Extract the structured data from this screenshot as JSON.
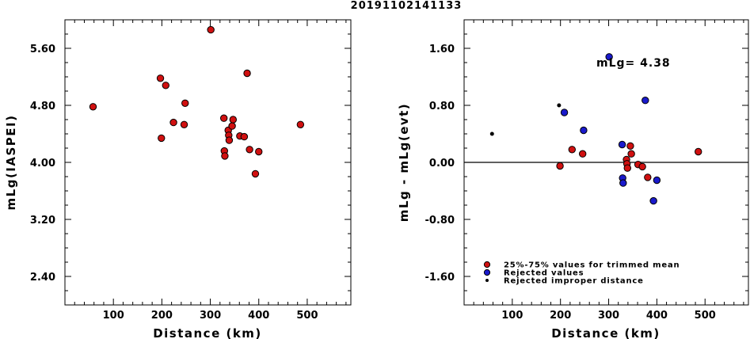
{
  "title": "20191102141133",
  "chart_data": [
    {
      "type": "scatter",
      "xlabel": "Distance (km)",
      "ylabel": "mLg(IASPEI)",
      "xlim": [
        0,
        590
      ],
      "ylim": [
        2.0,
        6.0
      ],
      "x_ticks": [
        100,
        200,
        300,
        400,
        500
      ],
      "x_tick_labels": [
        "100",
        "200",
        "300",
        "400",
        "500"
      ],
      "y_ticks": [
        2.4,
        3.2,
        4.0,
        4.8,
        5.6
      ],
      "y_tick_labels": [
        "2.40",
        "3.20",
        "4.00",
        "4.80",
        "5.60"
      ],
      "grid": false,
      "series": [
        {
          "color": "#d01010",
          "points": [
            [
              58,
              4.78
            ],
            [
              197,
              5.18
            ],
            [
              199,
              4.34
            ],
            [
              208,
              5.08
            ],
            [
              224,
              4.56
            ],
            [
              246,
              4.53
            ],
            [
              248,
              4.83
            ],
            [
              301,
              5.86
            ],
            [
              328,
              4.62
            ],
            [
              329,
              4.16
            ],
            [
              330,
              4.09
            ],
            [
              337,
              4.45
            ],
            [
              338,
              4.38
            ],
            [
              339,
              4.31
            ],
            [
              345,
              4.51
            ],
            [
              347,
              4.6
            ],
            [
              361,
              4.37
            ],
            [
              370,
              4.36
            ],
            [
              376,
              5.25
            ],
            [
              381,
              4.18
            ],
            [
              393,
              3.84
            ],
            [
              400,
              4.15
            ],
            [
              486,
              4.53
            ]
          ]
        }
      ]
    },
    {
      "type": "scatter",
      "xlabel": "Distance (km)",
      "ylabel": "mLg - mLg(evt)",
      "xlim": [
        0,
        590
      ],
      "ylim": [
        -2.0,
        2.0
      ],
      "x_ticks": [
        100,
        200,
        300,
        400,
        500
      ],
      "x_tick_labels": [
        "100",
        "200",
        "300",
        "400",
        "500"
      ],
      "y_ticks": [
        -1.6,
        -0.8,
        0.0,
        0.8,
        1.6
      ],
      "y_tick_labels": [
        "-1.60",
        "-0.80",
        "0.00",
        "0.80",
        "1.60"
      ],
      "reference_line_y": 0.0,
      "grid": false,
      "annotation": "mLg= 4.38",
      "legend_position": "bottom-left",
      "series": [
        {
          "name": "25%-75% values for trimmed mean",
          "color": "#d01010",
          "marker": "circle",
          "points": [
            [
              199,
              -0.05
            ],
            [
              224,
              0.18
            ],
            [
              246,
              0.12
            ],
            [
              337,
              0.04
            ],
            [
              338,
              -0.02
            ],
            [
              339,
              -0.08
            ],
            [
              345,
              0.23
            ],
            [
              347,
              0.12
            ],
            [
              361,
              -0.03
            ],
            [
              370,
              -0.06
            ],
            [
              381,
              -0.21
            ],
            [
              486,
              0.15
            ]
          ]
        },
        {
          "name": "Rejected values",
          "color": "#1a1acc",
          "marker": "circle",
          "points": [
            [
              208,
              0.7
            ],
            [
              248,
              0.45
            ],
            [
              301,
              1.48
            ],
            [
              328,
              0.25
            ],
            [
              329,
              -0.22
            ],
            [
              330,
              -0.29
            ],
            [
              376,
              0.87
            ],
            [
              393,
              -0.54
            ],
            [
              400,
              -0.25
            ]
          ]
        },
        {
          "name": "Rejected improper distance",
          "color": "#000000",
          "marker": "dot",
          "points": [
            [
              58,
              0.4
            ],
            [
              197,
              0.8
            ]
          ]
        }
      ]
    }
  ]
}
